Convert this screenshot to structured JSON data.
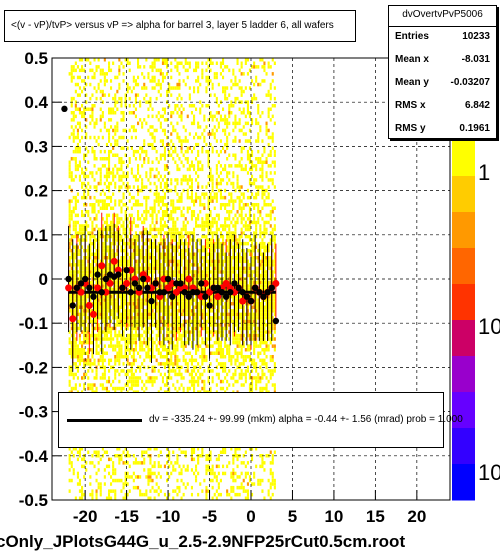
{
  "chart_data": {
    "type": "scatter",
    "title": "<(v - vP)/tvP> versus   vP => alpha for barrel 3, layer 5 ladder 6, all wafers",
    "xlim": [
      -24,
      24
    ],
    "ylim": [
      -0.5,
      0.5
    ],
    "x_ticks": [
      "-20",
      "-15",
      "-10",
      "-5",
      "0",
      "5",
      "10",
      "15",
      "20"
    ],
    "x_tick_values": [
      -20,
      -15,
      -10,
      -5,
      0,
      5,
      10,
      15,
      20
    ],
    "y_ticks": [
      "-0.5",
      "-0.4",
      "-0.3",
      "-0.2",
      "-0.1",
      "0",
      "0.1",
      "0.2",
      "0.3",
      "0.4",
      "0.5"
    ],
    "y_tick_values": [
      -0.5,
      -0.4,
      -0.3,
      -0.2,
      -0.1,
      0,
      0.1,
      0.2,
      0.3,
      0.4,
      0.5
    ],
    "grid": true,
    "z_axis": {
      "scale": "log",
      "tick_labels": [
        "1",
        "10",
        "10"
      ]
    },
    "histogram_band": {
      "x_range": [
        -22,
        3
      ],
      "y_range": [
        -0.5,
        0.5
      ]
    },
    "profile_black": {
      "x": [
        -22.5,
        -22,
        -21.5,
        -21,
        -20.5,
        -20,
        -19.5,
        -19,
        -18.5,
        -18,
        -17.5,
        -17,
        -16.5,
        -16,
        -15.5,
        -15,
        -14.5,
        -14,
        -13.5,
        -13,
        -12.5,
        -12,
        -11.5,
        -11,
        -10.5,
        -10,
        -9.5,
        -9,
        -8.5,
        -8,
        -7.5,
        -7,
        -6.5,
        -6,
        -5.5,
        -5,
        -4.5,
        -4,
        -3.5,
        -3,
        -2.5,
        -2,
        -1.5,
        -1,
        -0.5,
        0,
        0.5,
        1,
        1.5,
        2,
        2.5,
        3
      ],
      "y": [
        0.385,
        0.0,
        -0.06,
        -0.02,
        -0.01,
        0.0,
        -0.02,
        -0.04,
        0.01,
        -0.03,
        0.0,
        0.01,
        0.005,
        0.01,
        -0.02,
        0.02,
        -0.03,
        -0.01,
        -0.02,
        0.0,
        -0.02,
        -0.05,
        -0.01,
        -0.03,
        -0.03,
        0.0,
        -0.04,
        -0.01,
        -0.01,
        -0.03,
        -0.04,
        -0.03,
        -0.03,
        -0.01,
        -0.04,
        -0.06,
        -0.02,
        -0.02,
        -0.03,
        -0.04,
        -0.03,
        -0.01,
        -0.02,
        -0.03,
        -0.04,
        -0.05,
        -0.02,
        -0.03,
        -0.04,
        -0.03,
        -0.02,
        -0.095
      ],
      "err": [
        0.0,
        0.12,
        0.15,
        0.1,
        0.11,
        0.12,
        0.1,
        0.13,
        0.1,
        0.14,
        0.12,
        0.11,
        0.12,
        0.1,
        0.11,
        0.12,
        0.13,
        0.1,
        0.12,
        0.11,
        0.13,
        0.14,
        0.1,
        0.11,
        0.12,
        0.1,
        0.12,
        0.11,
        0.1,
        0.12,
        0.11,
        0.13,
        0.12,
        0.1,
        0.11,
        0.12,
        0.1,
        0.12,
        0.11,
        0.1,
        0.12,
        0.11,
        0.1,
        0.12,
        0.11,
        0.1,
        0.12,
        0.11,
        0.1,
        0.11,
        0.12,
        0.0
      ]
    },
    "profile_red": {
      "x": [
        -22,
        -21.5,
        -21,
        -20.5,
        -20,
        -19.5,
        -19,
        -18.5,
        -18,
        -17.5,
        -17,
        -16.5,
        -16,
        -15.5,
        -15,
        -14.5,
        -14,
        -13.5,
        -13,
        -12.5,
        -12,
        -11.5,
        -11,
        -10.5,
        -10,
        -9.5,
        -9,
        -8.5,
        -8,
        -7.5,
        -7,
        -6.5,
        -6,
        -5.5,
        -5,
        -4.5,
        -4,
        -3.5,
        -3,
        -2.5,
        -2,
        -1.5,
        -1,
        -0.5,
        0,
        0.5,
        1,
        1.5,
        2,
        2.5,
        3
      ],
      "y": [
        -0.02,
        -0.09,
        -0.02,
        -0.03,
        -0.01,
        -0.06,
        -0.08,
        -0.02,
        0.03,
        -0.03,
        -0.01,
        0.04,
        0.02,
        -0.02,
        -0.01,
        0.02,
        0.0,
        -0.03,
        0.01,
        0.0,
        -0.02,
        -0.01,
        -0.04,
        0.0,
        -0.02,
        -0.01,
        -0.03,
        -0.02,
        -0.02,
        0.0,
        -0.02,
        -0.03,
        -0.04,
        -0.01,
        -0.03,
        -0.02,
        -0.04,
        -0.02,
        -0.01,
        -0.02,
        -0.03,
        -0.02,
        -0.05,
        -0.04,
        -0.05,
        -0.02,
        -0.03,
        -0.04,
        -0.03,
        -0.02,
        -0.01
      ],
      "err": [
        0.09,
        0.1,
        0.12,
        0.08,
        0.1,
        0.11,
        0.09,
        0.1,
        0.12,
        0.09,
        0.1,
        0.11,
        0.1,
        0.09,
        0.1,
        0.12,
        0.09,
        0.1,
        0.11,
        0.1,
        0.09,
        0.1,
        0.11,
        0.1,
        0.09,
        0.1,
        0.11,
        0.1,
        0.09,
        0.1,
        0.11,
        0.1,
        0.09,
        0.1,
        0.1,
        0.11,
        0.1,
        0.09,
        0.1,
        0.11,
        0.1,
        0.09,
        0.1,
        0.1,
        0.11,
        0.1,
        0.09,
        0.1,
        0.11,
        0.1,
        0.09
      ]
    },
    "fit_line": {
      "x": [
        -22,
        3
      ],
      "y": [
        -0.03,
        -0.03
      ]
    },
    "colors": {
      "band_yellow": "#ffff00",
      "band_orange": "#ff9900",
      "red_marker": "#ff0000",
      "black_marker": "#000000"
    }
  },
  "stats": {
    "name": "dvOvertvPvP5006",
    "rows": [
      {
        "label": "Entries",
        "value": "10233"
      },
      {
        "label": "Mean x",
        "value": "-8.031"
      },
      {
        "label": "Mean y",
        "value": "-0.03207"
      },
      {
        "label": "RMS x",
        "value": "6.842"
      },
      {
        "label": "RMS y",
        "value": "0.1961"
      }
    ]
  },
  "legend": {
    "fit_text": "dv = -335.24 +- 99.99 (mkm) alpha =   -0.44 +-  1.56 (mrad) prob = 1.000"
  },
  "footer": "cOnly_JPlotsG44G_u_2.5-2.9NFP25rCut0.5cm.root"
}
